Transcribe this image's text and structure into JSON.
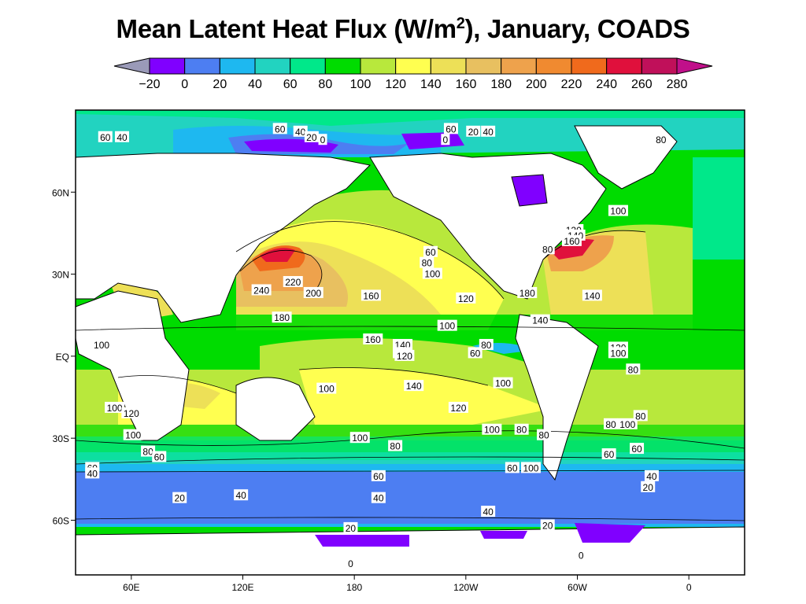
{
  "title": {
    "prefix": "Mean Latent Heat Flux (W/m",
    "superscript": "2",
    "suffix": "), January, COADS"
  },
  "colorbar": {
    "tick_labels": [
      "−20",
      "0",
      "20",
      "40",
      "60",
      "80",
      "100",
      "120",
      "140",
      "160",
      "180",
      "200",
      "220",
      "240",
      "260",
      "280"
    ],
    "colors": [
      "#9a9ab8",
      "#8000ff",
      "#4d7ef2",
      "#1eb8f0",
      "#22d3c0",
      "#00e88a",
      "#00dc00",
      "#b8e83c",
      "#ffff50",
      "#ede057",
      "#e8c060",
      "#eea24c",
      "#f08a30",
      "#f06a1c",
      "#e0103c",
      "#c0105a",
      "#c0108a"
    ]
  },
  "map_data": {
    "type": "contour-map",
    "variable": "Mean Latent Heat Flux",
    "units": "W/m2",
    "month": "January",
    "dataset": "COADS",
    "lat_ticks": [
      "60N",
      "30N",
      "EQ",
      "30S",
      "60S"
    ],
    "lon_ticks": [
      "60E",
      "120E",
      "180",
      "120W",
      "60W",
      "0"
    ],
    "contour_labels": [
      {
        "text": "60",
        "lon": 46,
        "lat": 80
      },
      {
        "text": "40",
        "lon": 55,
        "lat": 80
      },
      {
        "text": "60",
        "lon": 140,
        "lat": 83
      },
      {
        "text": "40",
        "lon": 151,
        "lat": 82
      },
      {
        "text": "20",
        "lon": 157,
        "lat": 80
      },
      {
        "text": "0",
        "lon": 163,
        "lat": 79
      },
      {
        "text": "60",
        "lon": 232,
        "lat": 83
      },
      {
        "text": "20",
        "lon": 244,
        "lat": 82
      },
      {
        "text": "40",
        "lon": 252,
        "lat": 82
      },
      {
        "text": "0",
        "lon": 229,
        "lat": 79
      },
      {
        "text": "80",
        "lon": 345,
        "lat": 79
      },
      {
        "text": "100",
        "lon": 322,
        "lat": 53
      },
      {
        "text": "120",
        "lon": 298,
        "lat": 46
      },
      {
        "text": "140",
        "lon": 299,
        "lat": 44
      },
      {
        "text": "160",
        "lon": 297,
        "lat": 42
      },
      {
        "text": "80",
        "lon": 284,
        "lat": 39
      },
      {
        "text": "60",
        "lon": 221,
        "lat": 38
      },
      {
        "text": "80",
        "lon": 219,
        "lat": 34
      },
      {
        "text": "100",
        "lon": 222,
        "lat": 30
      },
      {
        "text": "220",
        "lon": 147,
        "lat": 27
      },
      {
        "text": "240",
        "lon": 130,
        "lat": 24
      },
      {
        "text": "200",
        "lon": 158,
        "lat": 23
      },
      {
        "text": "160",
        "lon": 189,
        "lat": 22
      },
      {
        "text": "120",
        "lon": 240,
        "lat": 21
      },
      {
        "text": "180",
        "lon": 273,
        "lat": 23
      },
      {
        "text": "140",
        "lon": 308,
        "lat": 22
      },
      {
        "text": "180",
        "lon": 141,
        "lat": 14
      },
      {
        "text": "140",
        "lon": 280,
        "lat": 13
      },
      {
        "text": "100",
        "lon": 230,
        "lat": 11
      },
      {
        "text": "100",
        "lon": 44,
        "lat": 4
      },
      {
        "text": "160",
        "lon": 190,
        "lat": 6
      },
      {
        "text": "140",
        "lon": 206,
        "lat": 4
      },
      {
        "text": "120",
        "lon": 206,
        "lat": 1
      },
      {
        "text": "120",
        "lon": 207,
        "lat": 0
      },
      {
        "text": "80",
        "lon": 251,
        "lat": 4
      },
      {
        "text": "60",
        "lon": 245,
        "lat": 1
      },
      {
        "text": "120",
        "lon": 322,
        "lat": 3
      },
      {
        "text": "100",
        "lon": 322,
        "lat": 1
      },
      {
        "text": "100",
        "lon": 260,
        "lat": -10
      },
      {
        "text": "140",
        "lon": 212,
        "lat": -11
      },
      {
        "text": "100",
        "lon": 165,
        "lat": -12
      },
      {
        "text": "80",
        "lon": 330,
        "lat": -5
      },
      {
        "text": "100",
        "lon": 51,
        "lat": -19
      },
      {
        "text": "120",
        "lon": 60,
        "lat": -21
      },
      {
        "text": "120",
        "lon": 236,
        "lat": -19
      },
      {
        "text": "100",
        "lon": 61,
        "lat": -29
      },
      {
        "text": "100",
        "lon": 254,
        "lat": -27
      },
      {
        "text": "80",
        "lon": 270,
        "lat": -27
      },
      {
        "text": "80",
        "lon": 282,
        "lat": -29
      },
      {
        "text": "80",
        "lon": 318,
        "lat": -25
      },
      {
        "text": "100",
        "lon": 327,
        "lat": -25
      },
      {
        "text": "80",
        "lon": 334,
        "lat": -22
      },
      {
        "text": "100",
        "lon": 183,
        "lat": -30
      },
      {
        "text": "80",
        "lon": 202,
        "lat": -33
      },
      {
        "text": "80",
        "lon": 69,
        "lat": -35
      },
      {
        "text": "60",
        "lon": 75,
        "lat": -37
      },
      {
        "text": "60",
        "lon": 317,
        "lat": -36
      },
      {
        "text": "60",
        "lon": 332,
        "lat": -34
      },
      {
        "text": "60",
        "lon": 39,
        "lat": -41
      },
      {
        "text": "40",
        "lon": 39,
        "lat": -43
      },
      {
        "text": "60",
        "lon": 265,
        "lat": -41
      },
      {
        "text": "100",
        "lon": 275,
        "lat": -41
      },
      {
        "text": "60",
        "lon": 193,
        "lat": -44
      },
      {
        "text": "40",
        "lon": 340,
        "lat": -44
      },
      {
        "text": "20",
        "lon": 86,
        "lat": -52
      },
      {
        "text": "40",
        "lon": 119,
        "lat": -51
      },
      {
        "text": "40",
        "lon": 193,
        "lat": -52
      },
      {
        "text": "20",
        "lon": 338,
        "lat": -48
      },
      {
        "text": "40",
        "lon": 252,
        "lat": -57
      },
      {
        "text": "20",
        "lon": 178,
        "lat": -63
      },
      {
        "text": "20",
        "lon": 284,
        "lat": -62
      },
      {
        "text": "0",
        "lon": 178,
        "lat": -76
      },
      {
        "text": "0",
        "lon": 302,
        "lat": -73
      }
    ]
  }
}
